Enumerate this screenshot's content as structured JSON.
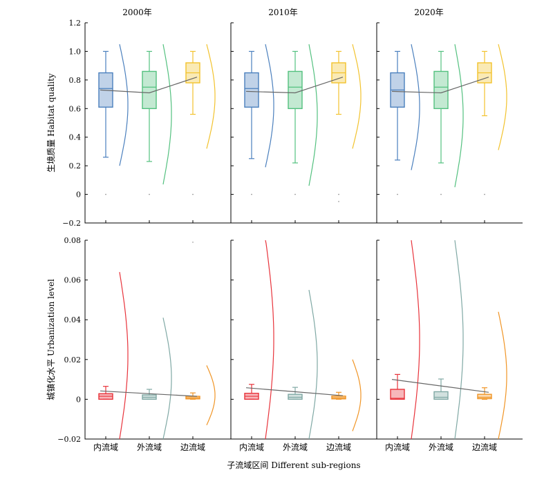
{
  "chart_data": {
    "type": "boxplot",
    "xlabel": "子流域区间 Different sub-regions",
    "categories": [
      "内流域",
      "外流域",
      "边流域"
    ],
    "series_colors": [
      "#4a7fbd",
      "#52c07e",
      "#f2c22c"
    ],
    "urban_colors": [
      "#e8323a",
      "#7fa8a4",
      "#f09424"
    ],
    "years": [
      "2000年",
      "2010年",
      "2020年"
    ],
    "rows": [
      {
        "ylabel": "生境质量 Habitat quality",
        "ylim": [
          -0.2,
          1.2
        ],
        "yticks": [
          "1.2",
          "1.0",
          "0.8",
          "0.6",
          "0.4",
          "0.2",
          "0",
          "−0.2"
        ],
        "ytick_values": [
          1.2,
          1.0,
          0.8,
          0.6,
          0.4,
          0.2,
          0,
          -0.2
        ],
        "panels": [
          {
            "year": "2000年",
            "boxes": [
              {
                "category": "内流域",
                "whisker_low": 0.26,
                "q1": 0.61,
                "median": 0.74,
                "q3": 0.85,
                "whisker_high": 1.0,
                "mean": 0.73,
                "outliers": [
                  0.0
                ],
                "density_range": [
                  0.2,
                  1.05
                ]
              },
              {
                "category": "外流域",
                "whisker_low": 0.23,
                "q1": 0.6,
                "median": 0.75,
                "q3": 0.86,
                "whisker_high": 1.0,
                "mean": 0.71,
                "outliers": [
                  0.0
                ],
                "density_range": [
                  0.07,
                  1.05
                ]
              },
              {
                "category": "边流域",
                "whisker_low": 0.56,
                "q1": 0.78,
                "median": 0.85,
                "q3": 0.92,
                "whisker_high": 1.0,
                "mean": 0.82,
                "outliers": [
                  0.0
                ],
                "density_range": [
                  0.32,
                  1.05
                ]
              }
            ]
          },
          {
            "year": "2010年",
            "boxes": [
              {
                "category": "内流域",
                "whisker_low": 0.25,
                "q1": 0.61,
                "median": 0.74,
                "q3": 0.85,
                "whisker_high": 1.0,
                "mean": 0.72,
                "outliers": [
                  0.0
                ],
                "density_range": [
                  0.19,
                  1.05
                ]
              },
              {
                "category": "外流域",
                "whisker_low": 0.22,
                "q1": 0.6,
                "median": 0.75,
                "q3": 0.86,
                "whisker_high": 1.0,
                "mean": 0.71,
                "outliers": [
                  0.0
                ],
                "density_range": [
                  0.06,
                  1.05
                ]
              },
              {
                "category": "边流域",
                "whisker_low": 0.56,
                "q1": 0.78,
                "median": 0.85,
                "q3": 0.92,
                "whisker_high": 1.0,
                "mean": 0.82,
                "outliers": [
                  0.0,
                  -0.05
                ],
                "density_range": [
                  0.32,
                  1.05
                ]
              }
            ]
          },
          {
            "year": "2020年",
            "boxes": [
              {
                "category": "内流域",
                "whisker_low": 0.24,
                "q1": 0.61,
                "median": 0.73,
                "q3": 0.85,
                "whisker_high": 1.0,
                "mean": 0.72,
                "outliers": [
                  0.0
                ],
                "density_range": [
                  0.17,
                  1.05
                ]
              },
              {
                "category": "外流域",
                "whisker_low": 0.22,
                "q1": 0.6,
                "median": 0.75,
                "q3": 0.86,
                "whisker_high": 1.0,
                "mean": 0.71,
                "outliers": [
                  0.0
                ],
                "density_range": [
                  0.05,
                  1.05
                ]
              },
              {
                "category": "边流域",
                "whisker_low": 0.55,
                "q1": 0.78,
                "median": 0.85,
                "q3": 0.92,
                "whisker_high": 1.0,
                "mean": 0.82,
                "outliers": [
                  0.0
                ],
                "density_range": [
                  0.31,
                  1.05
                ]
              }
            ]
          }
        ]
      },
      {
        "ylabel": "城镇化水平 Urbanization level",
        "ylim": [
          -0.02,
          0.08
        ],
        "yticks": [
          "0.08",
          "0.06",
          "0.04",
          "0.02",
          "0",
          "−0.02"
        ],
        "ytick_values": [
          0.08,
          0.06,
          0.04,
          0.02,
          0,
          -0.02
        ],
        "panels": [
          {
            "year": "2000年",
            "boxes": [
              {
                "category": "内流域",
                "whisker_low": 0.0,
                "q1": 0.0,
                "median": 0.0015,
                "q3": 0.0028,
                "whisker_high": 0.0065,
                "mean": 0.0042,
                "outliers": [],
                "density_range": [
                  -0.02,
                  0.064
                ]
              },
              {
                "category": "外流域",
                "whisker_low": 0.0,
                "q1": 0.0,
                "median": 0.001,
                "q3": 0.0022,
                "whisker_high": 0.005,
                "mean": 0.0028,
                "outliers": [],
                "density_range": [
                  -0.02,
                  0.041
                ]
              },
              {
                "category": "边流域",
                "whisker_low": 0.0,
                "q1": 0.0002,
                "median": 0.0008,
                "q3": 0.0015,
                "whisker_high": 0.0032,
                "mean": 0.0015,
                "outliers": [
                  0.079
                ],
                "density_range": [
                  -0.013,
                  0.017
                ]
              }
            ]
          },
          {
            "year": "2010年",
            "boxes": [
              {
                "category": "内流域",
                "whisker_low": 0.0,
                "q1": 0.0,
                "median": 0.0015,
                "q3": 0.003,
                "whisker_high": 0.0075,
                "mean": 0.0058,
                "outliers": [],
                "density_range": [
                  -0.02,
                  0.081
                ]
              },
              {
                "category": "外流域",
                "whisker_low": 0.0,
                "q1": 0.0,
                "median": 0.001,
                "q3": 0.0025,
                "whisker_high": 0.006,
                "mean": 0.0038,
                "outliers": [],
                "density_range": [
                  -0.02,
                  0.055
                ]
              },
              {
                "category": "边流域",
                "whisker_low": 0.0,
                "q1": 0.0002,
                "median": 0.0008,
                "q3": 0.0016,
                "whisker_high": 0.0035,
                "mean": 0.0018,
                "outliers": [],
                "density_range": [
                  -0.016,
                  0.02
                ]
              }
            ]
          },
          {
            "year": "2020年",
            "boxes": [
              {
                "category": "内流域",
                "whisker_low": 0.0,
                "q1": 0.0,
                "median": 0.0005,
                "q3": 0.005,
                "whisker_high": 0.0125,
                "mean": 0.01,
                "outliers": [],
                "density_range": [
                  -0.02,
                  0.08
                ]
              },
              {
                "category": "外流域",
                "whisker_low": 0.0,
                "q1": 0.0,
                "median": 0.001,
                "q3": 0.0038,
                "whisker_high": 0.0102,
                "mean": 0.0067,
                "outliers": [],
                "density_range": [
                  -0.02,
                  0.08
                ]
              },
              {
                "category": "边流域",
                "whisker_low": 0.0,
                "q1": 0.0003,
                "median": 0.001,
                "q3": 0.0025,
                "whisker_high": 0.0058,
                "mean": 0.0035,
                "outliers": [],
                "density_range": [
                  -0.02,
                  0.044
                ]
              }
            ]
          }
        ]
      }
    ]
  }
}
